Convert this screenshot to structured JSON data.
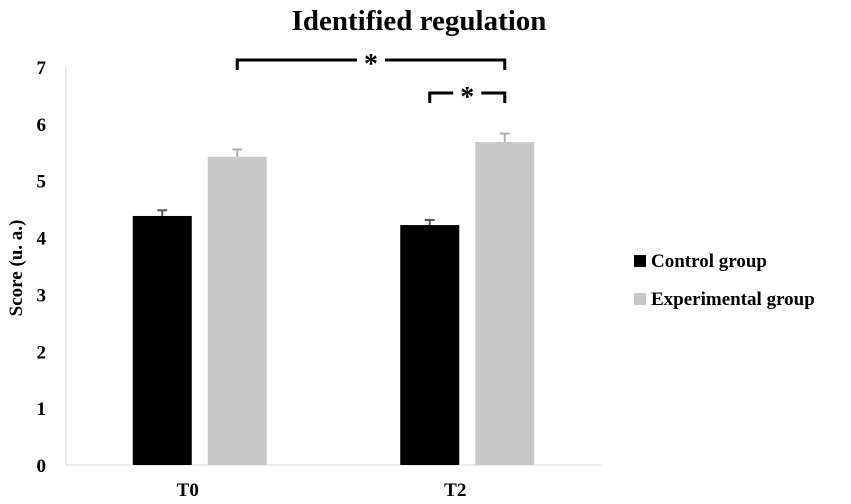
{
  "chart_data": {
    "type": "bar",
    "title": "Identified regulation",
    "xlabel": "",
    "ylabel": "Score (u. a.)",
    "ylim": [
      0,
      7
    ],
    "yticks": [
      "0",
      "1",
      "2",
      "3",
      "4",
      "5",
      "6",
      "7"
    ],
    "categories": [
      "T0",
      "T2"
    ],
    "series": [
      {
        "name": "Control group",
        "values": [
          4.38,
          4.22
        ],
        "errors": [
          0.1,
          0.09
        ],
        "color": "#000000"
      },
      {
        "name": "Experimental group",
        "values": [
          5.42,
          5.68
        ],
        "errors": [
          0.13,
          0.15
        ],
        "color": "#c8c8c8"
      }
    ],
    "annotations": [
      {
        "text": "*",
        "from": "T0 Experimental group",
        "to": "T2 Experimental group"
      },
      {
        "text": "*",
        "from": "T2 Control group",
        "to": "T2 Experimental group"
      }
    ],
    "grid": false,
    "legend_position": "right"
  }
}
